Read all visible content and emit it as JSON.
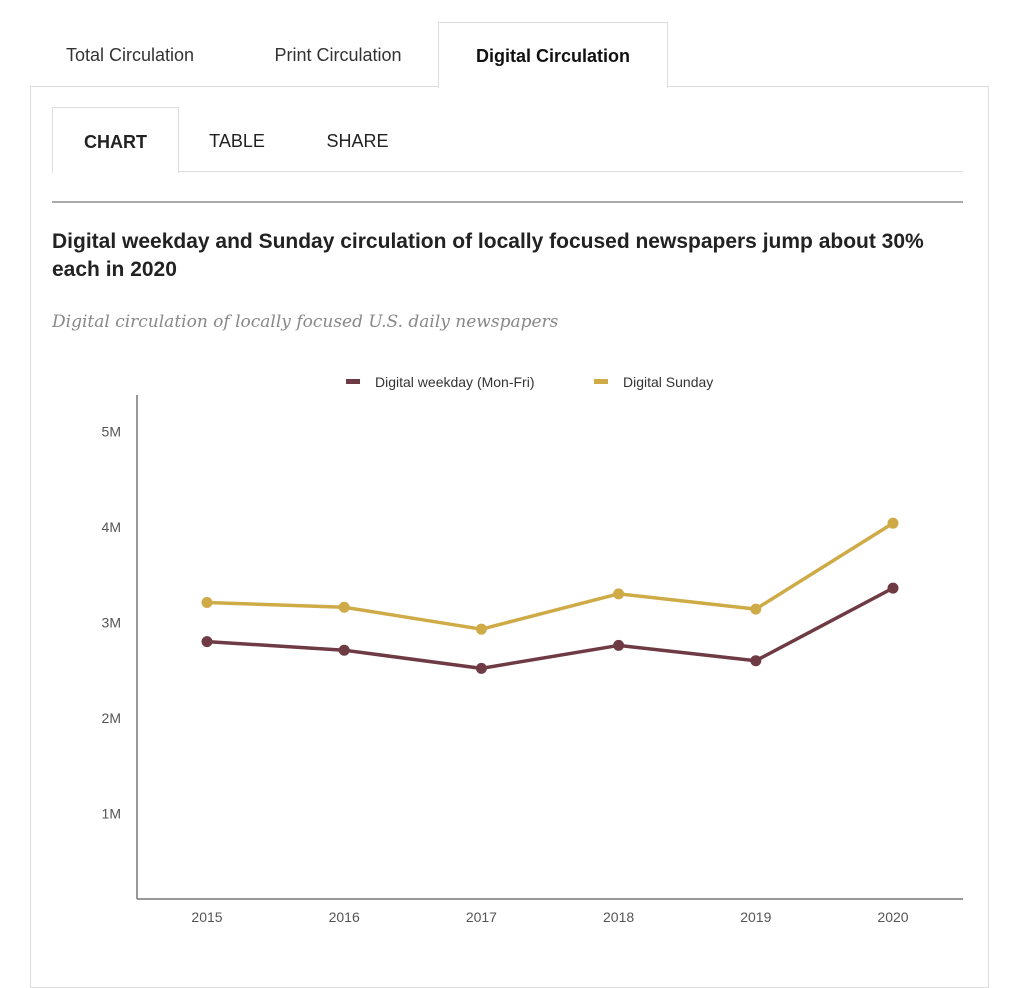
{
  "outer_tabs": [
    {
      "label": "Total Circulation",
      "active": false
    },
    {
      "label": "Print Circulation",
      "active": false
    },
    {
      "label": "Digital Circulation",
      "active": true
    }
  ],
  "inner_tabs": [
    {
      "label": "CHART",
      "active": true
    },
    {
      "label": "TABLE",
      "active": false
    },
    {
      "label": "SHARE",
      "active": false
    }
  ],
  "chart_data": {
    "type": "line",
    "title": "Digital weekday and Sunday circulation of locally focused newspapers jump about 30% each in 2020",
    "subtitle": "Digital circulation of locally focused U.S. daily newspapers",
    "x": [
      "2015",
      "2016",
      "2017",
      "2018",
      "2019",
      "2020"
    ],
    "y_ticks": [
      "1M",
      "2M",
      "3M",
      "4M",
      "5M"
    ],
    "ylim": [
      0,
      5
    ],
    "y_unit": "millions",
    "legend_position": "top-center",
    "grid": false,
    "series": [
      {
        "name": "Digital weekday (Mon-Fri)",
        "color": "#6e3a44",
        "values": [
          2.8,
          2.71,
          2.52,
          2.76,
          2.6,
          3.36
        ]
      },
      {
        "name": "Digital Sunday",
        "color": "#cfab47",
        "values": [
          3.21,
          3.16,
          2.93,
          3.3,
          3.14,
          4.04
        ]
      }
    ]
  }
}
